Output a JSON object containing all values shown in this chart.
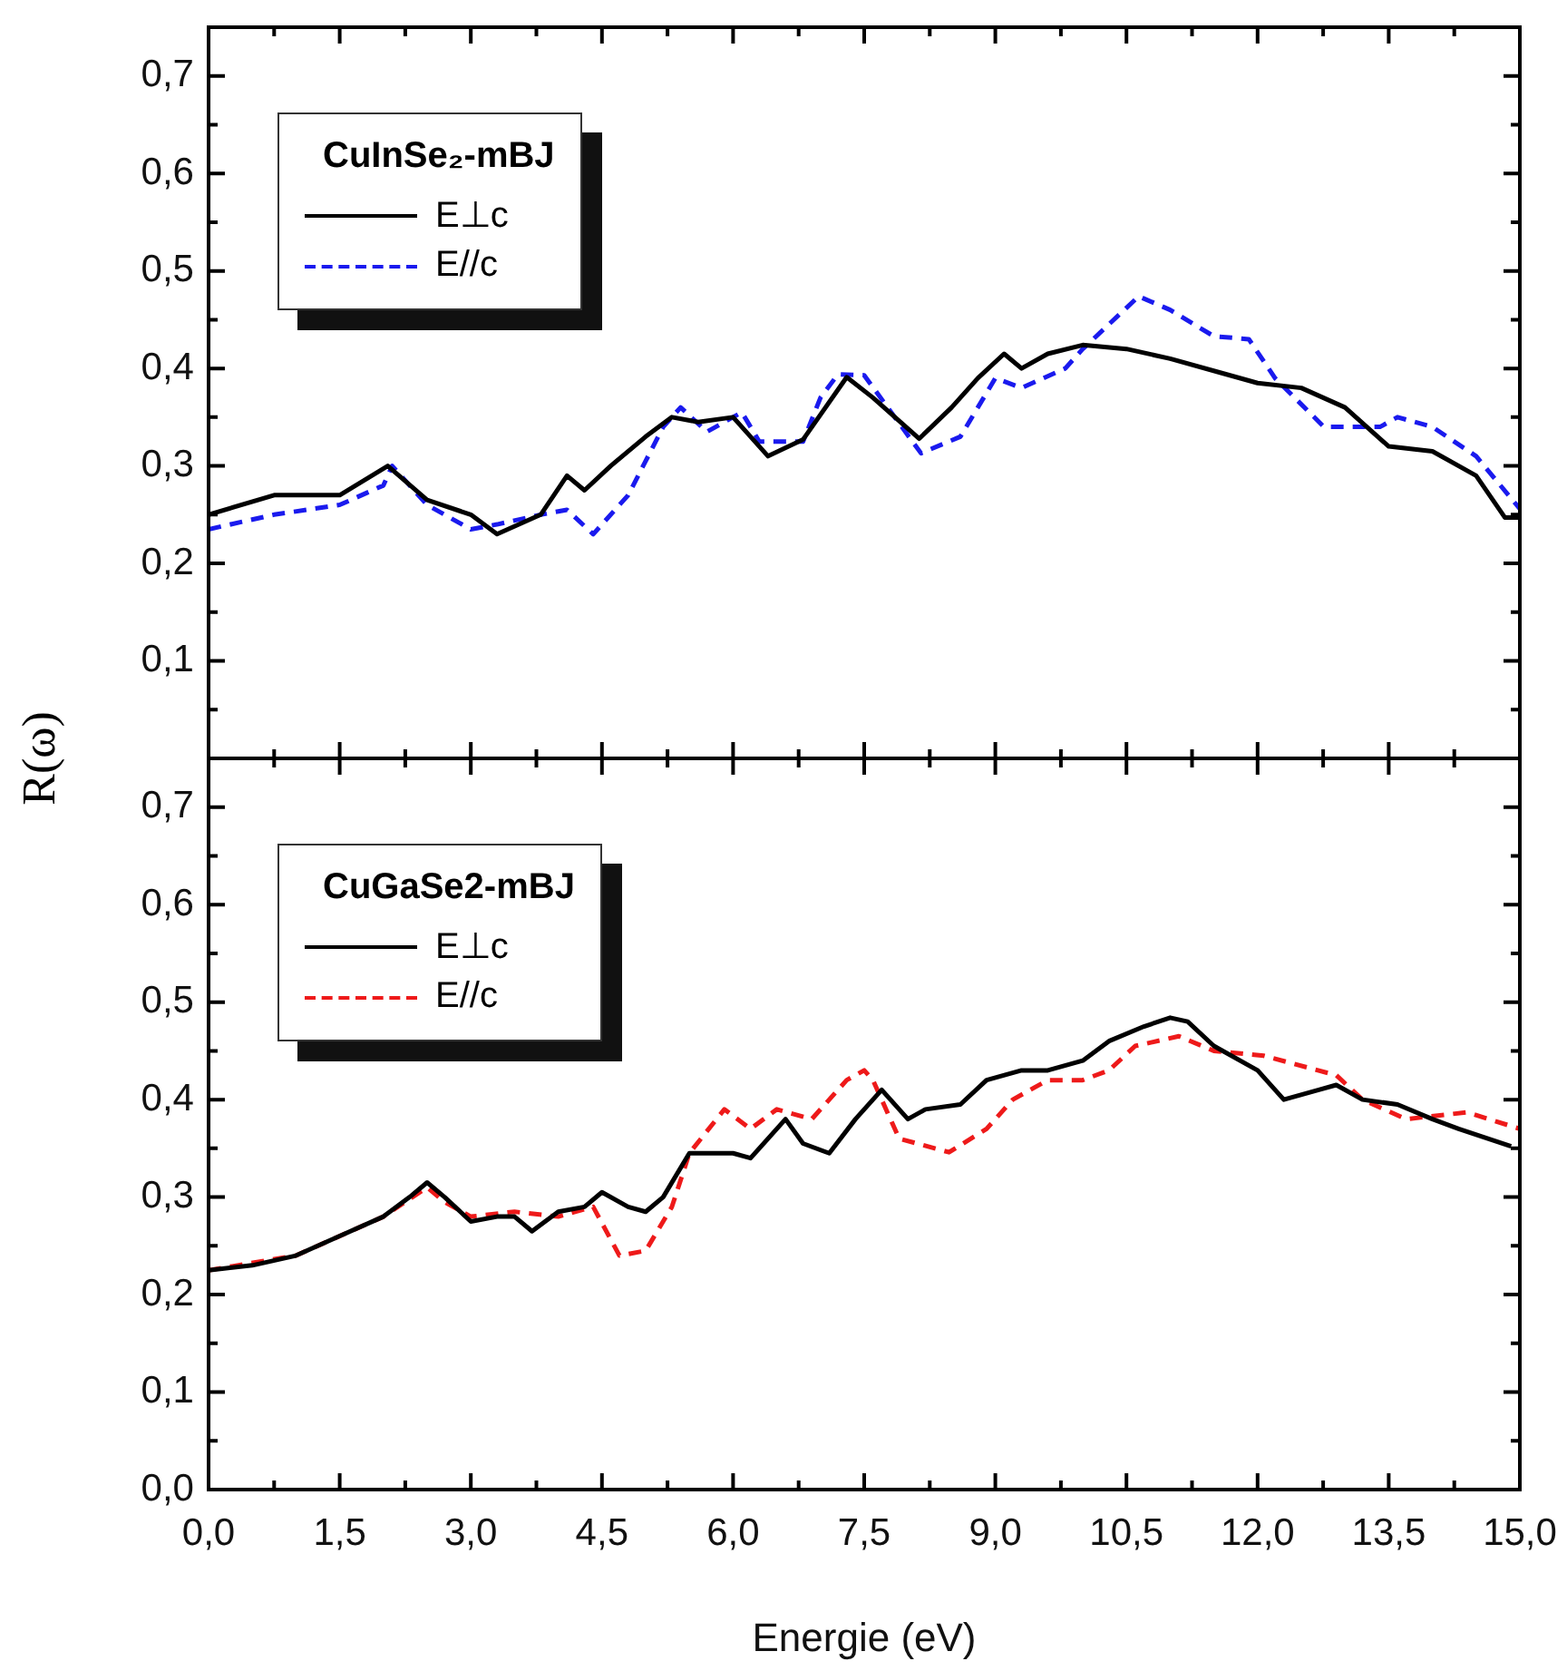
{
  "chart_data": [
    {
      "type": "line",
      "legend_title": "CuInSe₂-mBJ",
      "ylabel": "R(ω)",
      "xlim": [
        0,
        15
      ],
      "xticks": [
        0,
        1.5,
        3,
        4.5,
        6,
        7.5,
        9,
        10.5,
        12,
        13.5,
        15
      ],
      "ylim": [
        0,
        0.75
      ],
      "yticks": [
        {
          "value": 0,
          "label": null
        },
        {
          "value": 0.1,
          "label": "0,1"
        },
        {
          "value": 0.2,
          "label": "0,2"
        },
        {
          "value": 0.3,
          "label": "0,3"
        },
        {
          "value": 0.4,
          "label": "0,4"
        },
        {
          "value": 0.5,
          "label": "0,5"
        },
        {
          "value": 0.6,
          "label": "0,6"
        },
        {
          "value": 0.7,
          "label": "0,7"
        }
      ],
      "tick_labels": "y",
      "legend": "top left",
      "grid": false,
      "marker": "none",
      "series": [
        {
          "name": "E⊥c",
          "color": "#000000",
          "line_style": "solid",
          "x": [
            0,
            0.75,
            1.5,
            2.05,
            2.5,
            3,
            3.3,
            3.8,
            4.1,
            4.3,
            4.6,
            5,
            5.3,
            5.6,
            6,
            6.4,
            6.8,
            7.3,
            7.6,
            8.13,
            8.5,
            8.8,
            9.1,
            9.3,
            9.6,
            10,
            10.5,
            11,
            11.6,
            12,
            12.5,
            13,
            13.5,
            14,
            14.5,
            14.83,
            15
          ],
          "values": [
            0.25,
            0.27,
            0.27,
            0.3,
            0.265,
            0.25,
            0.23,
            0.25,
            0.29,
            0.275,
            0.3,
            0.33,
            0.35,
            0.345,
            0.35,
            0.31,
            0.327,
            0.391,
            0.37,
            0.328,
            0.36,
            0.39,
            0.415,
            0.4,
            0.415,
            0.424,
            0.42,
            0.41,
            0.395,
            0.385,
            0.38,
            0.36,
            0.32,
            0.315,
            0.29,
            0.247,
            0.247
          ]
        },
        {
          "name": "E//c",
          "color": "#1a1aee",
          "line_style": "dashed",
          "x": [
            0,
            0.75,
            1.5,
            2,
            2.1,
            2.5,
            3,
            3.3,
            3.8,
            4.1,
            4.4,
            4.8,
            5.2,
            5.4,
            5.7,
            6.1,
            6.3,
            6.8,
            7,
            7.2,
            7.5,
            8.15,
            8.6,
            9,
            9.3,
            9.8,
            10,
            10.64,
            11,
            11.5,
            11.9,
            12.2,
            12.76,
            13.4,
            13.6,
            14,
            14.5,
            15
          ],
          "values": [
            0.235,
            0.25,
            0.26,
            0.28,
            0.3,
            0.26,
            0.235,
            0.24,
            0.25,
            0.255,
            0.23,
            0.27,
            0.34,
            0.36,
            0.335,
            0.355,
            0.325,
            0.325,
            0.37,
            0.394,
            0.393,
            0.313,
            0.33,
            0.39,
            0.38,
            0.4,
            0.42,
            0.474,
            0.46,
            0.433,
            0.43,
            0.39,
            0.34,
            0.34,
            0.35,
            0.34,
            0.31,
            0.256
          ]
        }
      ]
    },
    {
      "type": "line",
      "legend_title": "CuGaSe2-mBJ",
      "xlabel": "Energie (eV)",
      "xlim": [
        0,
        15
      ],
      "xticks": [
        {
          "value": 0,
          "label": "0,0"
        },
        {
          "value": 1.5,
          "label": "1,5"
        },
        {
          "value": 3,
          "label": "3,0"
        },
        {
          "value": 4.5,
          "label": "4,5"
        },
        {
          "value": 6,
          "label": "6,0"
        },
        {
          "value": 7.5,
          "label": "7,5"
        },
        {
          "value": 9,
          "label": "9,0"
        },
        {
          "value": 10.5,
          "label": "10,5"
        },
        {
          "value": 12,
          "label": "12,0"
        },
        {
          "value": 13.5,
          "label": "13,5"
        },
        {
          "value": 15,
          "label": "15,0"
        }
      ],
      "ylim": [
        0,
        0.75
      ],
      "yticks": [
        {
          "value": 0,
          "label": "0,0"
        },
        {
          "value": 0.1,
          "label": "0,1"
        },
        {
          "value": 0.2,
          "label": "0,2"
        },
        {
          "value": 0.3,
          "label": "0,3"
        },
        {
          "value": 0.4,
          "label": "0,4"
        },
        {
          "value": 0.5,
          "label": "0,5"
        },
        {
          "value": 0.6,
          "label": "0,6"
        },
        {
          "value": 0.7,
          "label": "0,7"
        }
      ],
      "legend": "top left",
      "grid": false,
      "marker": "none",
      "series": [
        {
          "name": "E⊥c",
          "color": "#000000",
          "line_style": "solid",
          "x": [
            0,
            0.5,
            1,
            1.5,
            2,
            2.3,
            2.5,
            2.7,
            3,
            3.3,
            3.5,
            3.7,
            4,
            4.3,
            4.5,
            4.8,
            5,
            5.2,
            5.5,
            6,
            6.2,
            6.6,
            6.8,
            7.1,
            7.4,
            7.7,
            7.8,
            8,
            8.2,
            8.6,
            8.9,
            9.3,
            9.6,
            10,
            10.3,
            10.7,
            11,
            11.2,
            11.5,
            12,
            12.3,
            12.7,
            12.9,
            13.2,
            13.6,
            14,
            14.3,
            14.9
          ],
          "values": [
            0.225,
            0.23,
            0.24,
            0.26,
            0.28,
            0.3,
            0.315,
            0.3,
            0.275,
            0.28,
            0.28,
            0.265,
            0.285,
            0.29,
            0.305,
            0.29,
            0.285,
            0.3,
            0.345,
            0.345,
            0.34,
            0.38,
            0.355,
            0.345,
            0.38,
            0.41,
            0.4,
            0.38,
            0.39,
            0.395,
            0.42,
            0.43,
            0.43,
            0.44,
            0.46,
            0.475,
            0.484,
            0.48,
            0.455,
            0.43,
            0.4,
            0.41,
            0.415,
            0.4,
            0.395,
            0.38,
            0.37,
            0.352
          ]
        },
        {
          "name": "E//c",
          "color": "#ee1a1a",
          "line_style": "dashed",
          "x": [
            0,
            1,
            2,
            2.5,
            2.7,
            3,
            3.5,
            4,
            4.4,
            4.7,
            5,
            5.3,
            5.5,
            5.9,
            6.2,
            6.5,
            6.9,
            7.3,
            7.5,
            7.6,
            7.9,
            8.47,
            8.9,
            9.2,
            9.6,
            10,
            10.3,
            10.6,
            11.1,
            11.5,
            12.07,
            12.9,
            13.2,
            13.7,
            14.4,
            15
          ],
          "values": [
            0.225,
            0.24,
            0.28,
            0.31,
            0.295,
            0.28,
            0.285,
            0.28,
            0.29,
            0.24,
            0.245,
            0.29,
            0.345,
            0.39,
            0.37,
            0.39,
            0.38,
            0.42,
            0.43,
            0.42,
            0.36,
            0.346,
            0.37,
            0.4,
            0.42,
            0.42,
            0.43,
            0.455,
            0.465,
            0.45,
            0.445,
            0.425,
            0.4,
            0.38,
            0.387,
            0.37
          ]
        }
      ]
    }
  ]
}
